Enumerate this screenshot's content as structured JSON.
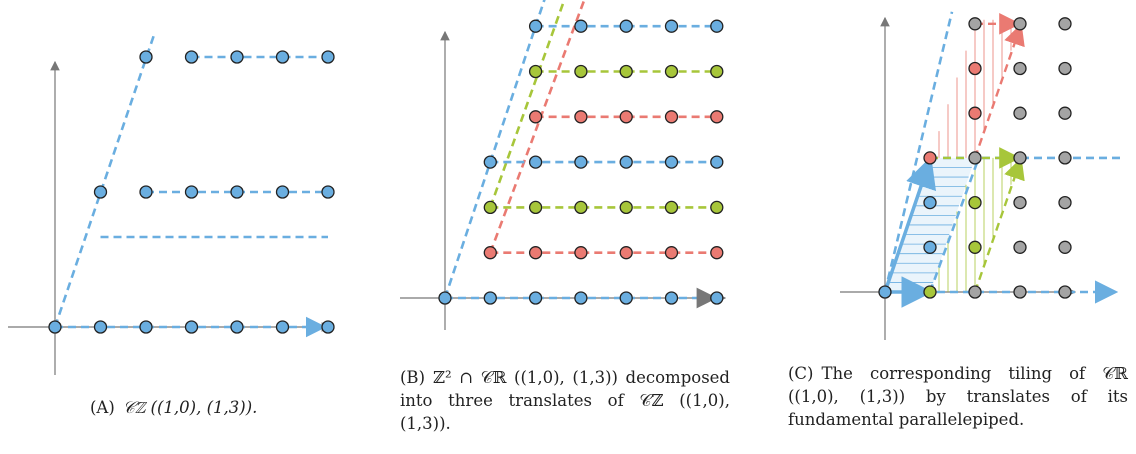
{
  "colors": {
    "blue": "#6aaee0",
    "green": "#a7c63a",
    "red": "#ea7a72",
    "gray": "#a4a4a4",
    "axis": "#777777"
  },
  "captions": {
    "a": {
      "tag": "(A)",
      "text": "𝒞ℤ ((1,0), (1,3))."
    },
    "b": {
      "tag": "(B)",
      "text": "ℤ² ∩ 𝒞ℝ ((1,0), (1,3)) decomposed into three translates of 𝒞ℤ ((1,0), (1,3))."
    },
    "c": {
      "tag": "(C)",
      "text": "The corresponding tiling of 𝒞ℝ ((1,0), (1,3)) by translates of its fundamental parallelepiped."
    }
  }
}
